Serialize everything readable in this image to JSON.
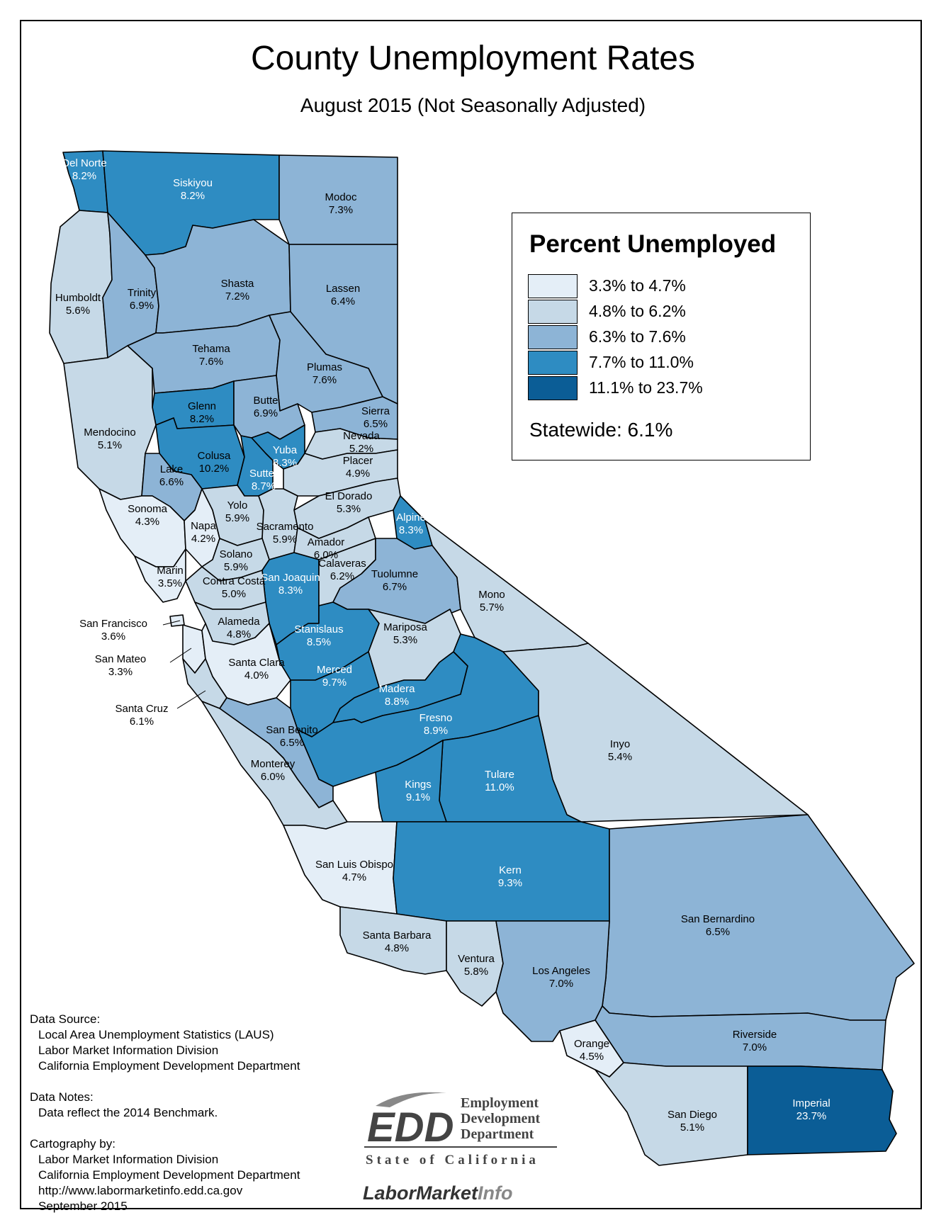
{
  "title": "County Unemployment Rates",
  "subtitle": "August 2015 (Not Seasonally Adjusted)",
  "legend": {
    "title": "Percent Unemployed",
    "classes": [
      {
        "label": "3.3% to 4.7%",
        "color": "#e4eef7"
      },
      {
        "label": "4.8% to 6.2%",
        "color": "#c6d9e7"
      },
      {
        "label": "6.3% to 7.6%",
        "color": "#8db4d6"
      },
      {
        "label": "7.7% to 11.0%",
        "color": "#2e8cc2"
      },
      {
        "label": "11.1% to 23.7%",
        "color": "#0b5d96"
      }
    ],
    "statewide": "Statewide: 6.1%"
  },
  "counties": [
    {
      "name": "Del Norte",
      "rate": "8.2%",
      "class": 3
    },
    {
      "name": "Siskiyou",
      "rate": "8.2%",
      "class": 3
    },
    {
      "name": "Modoc",
      "rate": "7.3%",
      "class": 2
    },
    {
      "name": "Humboldt",
      "rate": "5.6%",
      "class": 1
    },
    {
      "name": "Trinity",
      "rate": "6.9%",
      "class": 2
    },
    {
      "name": "Shasta",
      "rate": "7.2%",
      "class": 2
    },
    {
      "name": "Lassen",
      "rate": "6.4%",
      "class": 2
    },
    {
      "name": "Tehama",
      "rate": "7.6%",
      "class": 2
    },
    {
      "name": "Plumas",
      "rate": "7.6%",
      "class": 2
    },
    {
      "name": "Glenn",
      "rate": "8.2%",
      "class": 3
    },
    {
      "name": "Butte",
      "rate": "6.9%",
      "class": 2
    },
    {
      "name": "Sierra",
      "rate": "6.5%",
      "class": 2
    },
    {
      "name": "Nevada",
      "rate": "5.2%",
      "class": 1
    },
    {
      "name": "Mendocino",
      "rate": "5.1%",
      "class": 1
    },
    {
      "name": "Colusa",
      "rate": "10.2%",
      "class": 3
    },
    {
      "name": "Yuba",
      "rate": "8.3%",
      "class": 3
    },
    {
      "name": "Sutter",
      "rate": "8.7%",
      "class": 3
    },
    {
      "name": "Placer",
      "rate": "4.9%",
      "class": 1
    },
    {
      "name": "Lake",
      "rate": "6.6%",
      "class": 2
    },
    {
      "name": "Sonoma",
      "rate": "4.3%",
      "class": 0
    },
    {
      "name": "Napa",
      "rate": "4.2%",
      "class": 0
    },
    {
      "name": "Yolo",
      "rate": "5.9%",
      "class": 1
    },
    {
      "name": "El Dorado",
      "rate": "5.3%",
      "class": 1
    },
    {
      "name": "Sacramento",
      "rate": "5.9%",
      "class": 1
    },
    {
      "name": "Alpine",
      "rate": "8.3%",
      "class": 3
    },
    {
      "name": "Amador",
      "rate": "6.0%",
      "class": 1
    },
    {
      "name": "Solano",
      "rate": "5.9%",
      "class": 1
    },
    {
      "name": "Marin",
      "rate": "3.5%",
      "class": 0
    },
    {
      "name": "San Joaquin",
      "rate": "8.3%",
      "class": 3
    },
    {
      "name": "Calaveras",
      "rate": "6.2%",
      "class": 1
    },
    {
      "name": "Tuolumne",
      "rate": "6.7%",
      "class": 2
    },
    {
      "name": "Contra Costa",
      "rate": "5.0%",
      "class": 1
    },
    {
      "name": "Mono",
      "rate": "5.7%",
      "class": 1
    },
    {
      "name": "Alameda",
      "rate": "4.8%",
      "class": 1
    },
    {
      "name": "San Francisco",
      "rate": "3.6%",
      "class": 0
    },
    {
      "name": "Stanislaus",
      "rate": "8.5%",
      "class": 3
    },
    {
      "name": "Mariposa",
      "rate": "5.3%",
      "class": 1
    },
    {
      "name": "San Mateo",
      "rate": "3.3%",
      "class": 0
    },
    {
      "name": "Santa Clara",
      "rate": "4.0%",
      "class": 0
    },
    {
      "name": "Merced",
      "rate": "9.7%",
      "class": 3
    },
    {
      "name": "Madera",
      "rate": "8.8%",
      "class": 3
    },
    {
      "name": "Santa Cruz",
      "rate": "6.1%",
      "class": 1
    },
    {
      "name": "Fresno",
      "rate": "8.9%",
      "class": 3
    },
    {
      "name": "San Benito",
      "rate": "6.5%",
      "class": 2
    },
    {
      "name": "Inyo",
      "rate": "5.4%",
      "class": 1
    },
    {
      "name": "Monterey",
      "rate": "6.0%",
      "class": 1
    },
    {
      "name": "Tulare",
      "rate": "11.0%",
      "class": 3
    },
    {
      "name": "Kings",
      "rate": "9.1%",
      "class": 3
    },
    {
      "name": "San Luis Obispo",
      "rate": "4.7%",
      "class": 0
    },
    {
      "name": "Kern",
      "rate": "9.3%",
      "class": 3
    },
    {
      "name": "San Bernardino",
      "rate": "6.5%",
      "class": 2
    },
    {
      "name": "Santa Barbara",
      "rate": "4.8%",
      "class": 1
    },
    {
      "name": "Ventura",
      "rate": "5.8%",
      "class": 1
    },
    {
      "name": "Los Angeles",
      "rate": "7.0%",
      "class": 2
    },
    {
      "name": "Riverside",
      "rate": "7.0%",
      "class": 2
    },
    {
      "name": "Orange",
      "rate": "4.5%",
      "class": 0
    },
    {
      "name": "San Diego",
      "rate": "5.1%",
      "class": 1
    },
    {
      "name": "Imperial",
      "rate": "23.7%",
      "class": 4
    }
  ],
  "notes": {
    "source_heading": "Data Source:",
    "source_lines": [
      "Local Area Unemployment Statistics (LAUS)",
      "Labor Market Information Division",
      "California Employment Development Department"
    ],
    "notes_heading": "Data Notes:",
    "notes_lines": [
      "Data reflect the 2014 Benchmark."
    ],
    "carto_heading": "Cartography by:",
    "carto_lines": [
      "Labor Market Information Division",
      "California Employment Development Department",
      "http://www.labormarketinfo.edd.ca.gov",
      "September 2015"
    ]
  },
  "logos": {
    "edd_mark": "EDD",
    "edd_line1": "Employment",
    "edd_line2": "Development",
    "edd_line3": "Department",
    "edd_state": "State of California",
    "lmi_part1": "LaborMarket",
    "lmi_part2": "Info"
  }
}
